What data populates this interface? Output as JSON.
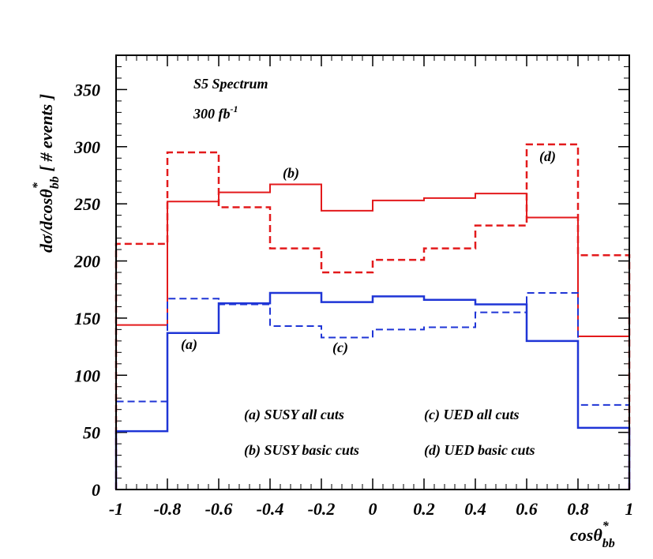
{
  "chart_data": {
    "type": "line",
    "xlabel_main": "cosθ",
    "xlabel_sup": "*",
    "xlabel_sub": "bb",
    "ylabel_main": "dσ/dcosθ",
    "ylabel_sup": "*",
    "ylabel_sub": "bb",
    "ylabel_suffix": "[ # events ]",
    "xlim": [
      -1,
      1
    ],
    "ylim": [
      0,
      380
    ],
    "x_ticks": [
      "-1",
      "-0.8",
      "-0.6",
      "-0.4",
      "-0.2",
      "0",
      "0.2",
      "0.4",
      "0.6",
      "0.8",
      "1"
    ],
    "y_ticks": [
      "0",
      "50",
      "100",
      "150",
      "200",
      "250",
      "300",
      "350"
    ],
    "bin_edges": [
      -1,
      -0.8,
      -0.6,
      -0.4,
      -0.2,
      0,
      0.2,
      0.4,
      0.6,
      0.8,
      1
    ],
    "series": [
      {
        "tag": "b",
        "color": "#e31a1c",
        "style": "solid",
        "width": 2,
        "values": [
          144,
          252,
          260,
          267,
          244,
          253,
          255,
          259,
          238,
          134
        ]
      },
      {
        "tag": "d",
        "color": "#e31a1c",
        "style": "dashed",
        "width": 2.5,
        "values": [
          215,
          295,
          247,
          211,
          190,
          201,
          211,
          231,
          302,
          205
        ]
      },
      {
        "tag": "a",
        "color": "#1f35d6",
        "style": "solid",
        "width": 2.5,
        "values": [
          51,
          137,
          163,
          172,
          164,
          169,
          166,
          162,
          130,
          54
        ]
      },
      {
        "tag": "c",
        "color": "#1f35d6",
        "style": "dashed",
        "width": 2,
        "values": [
          77,
          167,
          162,
          143,
          133,
          140,
          142,
          155,
          172,
          74
        ]
      }
    ],
    "annotations": {
      "spectrum": "S5 Spectrum",
      "lumi_main": "300 fb",
      "lumi_sup": "-1",
      "label_a": "(a)",
      "label_b": "(b)",
      "label_c": "(c)",
      "label_d": "(d)"
    },
    "legend": [
      "(a) SUSY all cuts",
      "(b) SUSY basic cuts",
      "(c) UED all cuts",
      "(d) UED basic cuts"
    ]
  }
}
